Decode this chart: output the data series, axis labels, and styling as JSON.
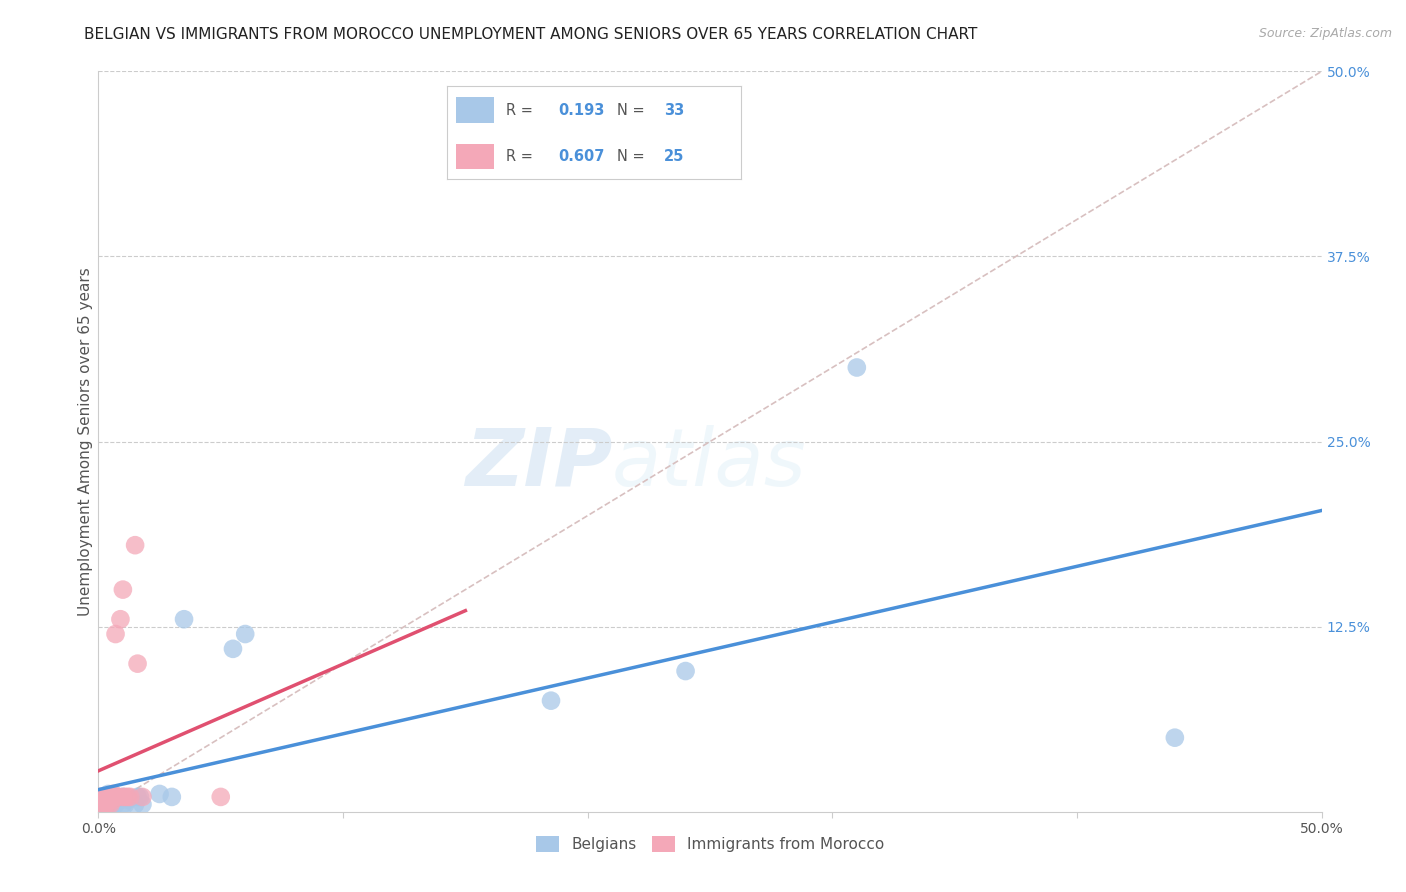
{
  "title": "BELGIAN VS IMMIGRANTS FROM MOROCCO UNEMPLOYMENT AMONG SENIORS OVER 65 YEARS CORRELATION CHART",
  "source": "Source: ZipAtlas.com",
  "ylabel_label": "Unemployment Among Seniors over 65 years",
  "right_yticks": [
    0.0,
    0.125,
    0.25,
    0.375,
    0.5
  ],
  "right_ylabels": [
    "",
    "12.5%",
    "25.0%",
    "37.5%",
    "50.0%"
  ],
  "xlim": [
    0.0,
    0.5
  ],
  "ylim": [
    0.0,
    0.5
  ],
  "belgian_color": "#a8c8e8",
  "moroccan_color": "#f4a8b8",
  "belgian_line_color": "#4a90d9",
  "moroccan_line_color": "#e05070",
  "diagonal_color": "#d8c0c0",
  "R_belgian": 0.193,
  "N_belgian": 33,
  "R_moroccan": 0.607,
  "N_moroccan": 25,
  "legend_label_belgian": "Belgians",
  "legend_label_moroccan": "Immigrants from Morocco",
  "watermark_zip": "ZIP",
  "watermark_atlas": "atlas",
  "belgians_x": [
    0.001,
    0.001,
    0.002,
    0.002,
    0.003,
    0.003,
    0.004,
    0.004,
    0.005,
    0.005,
    0.006,
    0.006,
    0.007,
    0.007,
    0.008,
    0.009,
    0.01,
    0.01,
    0.011,
    0.012,
    0.015,
    0.016,
    0.017,
    0.018,
    0.025,
    0.03,
    0.035,
    0.055,
    0.06,
    0.185,
    0.24,
    0.31,
    0.44
  ],
  "belgians_y": [
    0.005,
    0.01,
    0.005,
    0.008,
    0.005,
    0.01,
    0.005,
    0.012,
    0.005,
    0.01,
    0.005,
    0.01,
    0.005,
    0.01,
    0.008,
    0.008,
    0.005,
    0.01,
    0.005,
    0.008,
    0.005,
    0.01,
    0.01,
    0.005,
    0.012,
    0.01,
    0.13,
    0.11,
    0.12,
    0.075,
    0.095,
    0.3,
    0.05
  ],
  "moroccan_x": [
    0.001,
    0.001,
    0.002,
    0.002,
    0.003,
    0.003,
    0.004,
    0.004,
    0.005,
    0.005,
    0.006,
    0.006,
    0.007,
    0.007,
    0.008,
    0.009,
    0.01,
    0.01,
    0.011,
    0.012,
    0.013,
    0.015,
    0.016,
    0.018,
    0.05
  ],
  "moroccan_y": [
    0.005,
    0.01,
    0.005,
    0.01,
    0.005,
    0.01,
    0.005,
    0.01,
    0.005,
    0.01,
    0.008,
    0.012,
    0.01,
    0.12,
    0.01,
    0.13,
    0.01,
    0.15,
    0.01,
    0.01,
    0.01,
    0.18,
    0.1,
    0.01,
    0.01
  ],
  "title_fontsize": 11,
  "source_fontsize": 9,
  "axis_label_fontsize": 11,
  "tick_fontsize": 10,
  "legend_fontsize": 11
}
